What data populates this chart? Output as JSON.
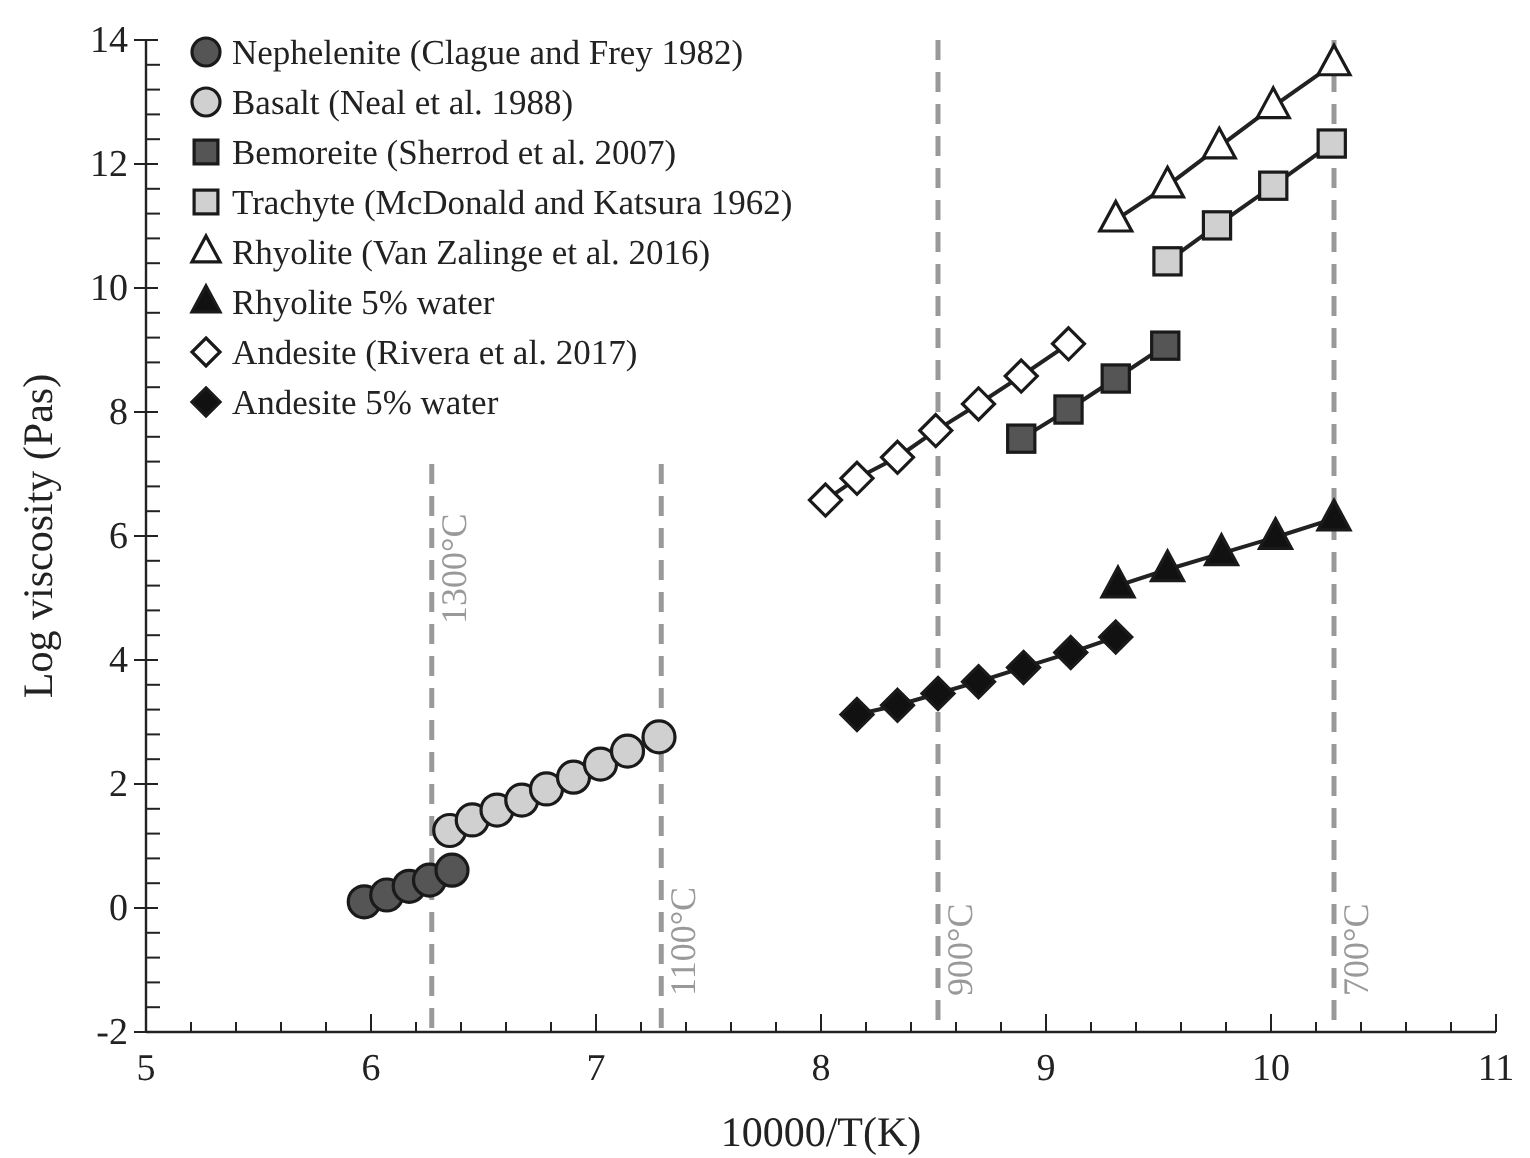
{
  "chart_data": {
    "type": "line",
    "xlabel": "10000/T(K)",
    "ylabel": "Log viscosity (Pas)",
    "xlim": [
      5,
      11
    ],
    "ylim": [
      -2,
      14
    ],
    "xticks": [
      5,
      {
        "value": 5.2,
        "label": null
      },
      {
        "value": 5.4,
        "label": null
      },
      {
        "value": 5.6,
        "label": null
      },
      {
        "value": 5.8,
        "label": null
      },
      6,
      {
        "value": 6.2,
        "label": null
      },
      {
        "value": 6.4,
        "label": null
      },
      {
        "value": 6.6,
        "label": null
      },
      {
        "value": 6.8,
        "label": null
      },
      7,
      {
        "value": 7.2,
        "label": null
      },
      {
        "value": 7.4,
        "label": null
      },
      {
        "value": 7.6,
        "label": null
      },
      {
        "value": 7.8,
        "label": null
      },
      8,
      {
        "value": 8.2,
        "label": null
      },
      {
        "value": 8.4,
        "label": null
      },
      {
        "value": 8.6,
        "label": null
      },
      {
        "value": 8.8,
        "label": null
      },
      9,
      {
        "value": 9.2,
        "label": null
      },
      {
        "value": 9.4,
        "label": null
      },
      {
        "value": 9.6,
        "label": null
      },
      {
        "value": 9.8,
        "label": null
      },
      10,
      {
        "value": 10.2,
        "label": null
      },
      {
        "value": 10.4,
        "label": null
      },
      {
        "value": 10.6,
        "label": null
      },
      {
        "value": 10.8,
        "label": null
      },
      11
    ],
    "yticks": [
      -2,
      {
        "value": -1.6,
        "label": null
      },
      {
        "value": -1.2,
        "label": null
      },
      {
        "value": -0.8,
        "label": null
      },
      {
        "value": -0.4,
        "label": null
      },
      0,
      {
        "value": 0.4,
        "label": null
      },
      {
        "value": 0.8,
        "label": null
      },
      {
        "value": 1.2,
        "label": null
      },
      {
        "value": 1.6,
        "label": null
      },
      2,
      {
        "value": 2.4,
        "label": null
      },
      {
        "value": 2.8,
        "label": null
      },
      {
        "value": 3.2,
        "label": null
      },
      {
        "value": 3.6,
        "label": null
      },
      4,
      {
        "value": 4.4,
        "label": null
      },
      {
        "value": 4.8,
        "label": null
      },
      {
        "value": 5.2,
        "label": null
      },
      {
        "value": 5.6,
        "label": null
      },
      6,
      {
        "value": 6.4,
        "label": null
      },
      {
        "value": 6.8,
        "label": null
      },
      {
        "value": 7.2,
        "label": null
      },
      {
        "value": 7.6,
        "label": null
      },
      8,
      {
        "value": 8.4,
        "label": null
      },
      {
        "value": 8.8,
        "label": null
      },
      {
        "value": 9.2,
        "label": null
      },
      {
        "value": 9.6,
        "label": null
      },
      10,
      {
        "value": 10.4,
        "label": null
      },
      {
        "value": 10.8,
        "label": null
      },
      {
        "value": 11.2,
        "label": null
      },
      {
        "value": 11.6,
        "label": null
      },
      12,
      {
        "value": 12.4,
        "label": null
      },
      {
        "value": 12.8,
        "label": null
      },
      {
        "value": 13.2,
        "label": null
      },
      {
        "value": 13.6,
        "label": null
      },
      14
    ],
    "grid": false,
    "legend": "top left",
    "line_style": "solid",
    "series": [
      {
        "name": "Nephelenite (Clague and Frey 1982)",
        "type": "scatter",
        "color": "#555555",
        "marker": "circle",
        "x": [
          5.97,
          6.07,
          6.17,
          6.26,
          6.36
        ],
        "values": [
          0.1,
          0.21,
          0.35,
          0.45,
          0.61
        ]
      },
      {
        "name": "Basalt (Neal et al. 1988)",
        "type": "scatter",
        "color": "#d0d0d0",
        "marker": "circle",
        "x": [
          6.35,
          6.45,
          6.56,
          6.67,
          6.78,
          6.9,
          7.02,
          7.14,
          7.28
        ],
        "values": [
          1.25,
          1.42,
          1.58,
          1.74,
          1.92,
          2.11,
          2.32,
          2.53,
          2.76
        ]
      },
      {
        "name": "Bemoreite (Sherrod et al. 2007)",
        "color": "#555555",
        "marker": "square",
        "x": [
          8.89,
          9.1,
          9.31,
          9.53
        ],
        "values": [
          7.57,
          8.04,
          8.54,
          9.07
        ]
      },
      {
        "name": "Trachyte (McDonald and Katsura 1962)",
        "color": "#d0d0d0",
        "marker": "square",
        "x": [
          9.54,
          9.76,
          10.01,
          10.27
        ],
        "values": [
          10.43,
          11.01,
          11.65,
          12.33
        ]
      },
      {
        "name": "Rhyolite (Van Zalinge et al. 2016)",
        "color": "#ffffff",
        "marker": "triangle",
        "x": [
          9.31,
          9.54,
          9.77,
          10.01,
          10.28
        ],
        "values": [
          11.1,
          11.65,
          12.28,
          12.93,
          13.62
        ]
      },
      {
        "name": "Rhyolite 5% water",
        "color": "#111111",
        "marker": "triangle",
        "x": [
          9.32,
          9.54,
          9.78,
          10.02,
          10.28
        ],
        "values": [
          5.2,
          5.46,
          5.72,
          5.98,
          6.28
        ]
      },
      {
        "name": "Andesite (Rivera et al. 2017)",
        "color": "#ffffff",
        "marker": "diamond",
        "x": [
          8.02,
          8.16,
          8.34,
          8.51,
          8.7,
          8.89,
          9.1
        ],
        "values": [
          6.58,
          6.93,
          7.27,
          7.7,
          8.13,
          8.58,
          9.1
        ]
      },
      {
        "name": "Andesite 5% water",
        "color": "#111111",
        "marker": "diamond",
        "x": [
          8.16,
          8.34,
          8.52,
          8.7,
          8.9,
          9.11,
          9.31
        ],
        "values": [
          3.12,
          3.27,
          3.46,
          3.65,
          3.88,
          4.12,
          4.37
        ]
      }
    ],
    "ref_lines": [
      {
        "axis": "x",
        "value": 6.27,
        "label": "1300°C",
        "color": "#999999",
        "line_style": "dashed"
      },
      {
        "axis": "x",
        "value": 7.29,
        "label": "1100°C",
        "color": "#999999",
        "line_style": "dashed"
      },
      {
        "axis": "x",
        "value": 8.52,
        "label": "900°C",
        "color": "#999999",
        "line_style": "dashed"
      },
      {
        "axis": "x",
        "value": 10.28,
        "label": "700°C",
        "color": "#999999",
        "line_style": "dashed"
      }
    ]
  }
}
